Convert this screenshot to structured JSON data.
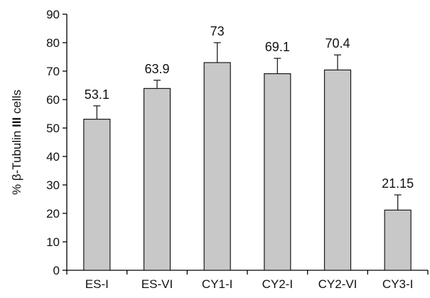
{
  "chart_data": {
    "type": "bar",
    "categories": [
      "ES-I",
      "ES-VI",
      "CY1-I",
      "CY2-I",
      "CY2-VI",
      "CY3-I"
    ],
    "values": [
      53.1,
      63.9,
      73,
      69.1,
      70.4,
      21.15
    ],
    "value_labels": [
      "53.1",
      "63.9",
      "73",
      "69.1",
      "70.4",
      "21.15"
    ],
    "error_upper": [
      57.8,
      66.8,
      80.0,
      74.5,
      75.7,
      26.5
    ],
    "ylabel": {
      "prefix": "% β-Tubulin ",
      "bold": "III",
      "suffix": " cells"
    },
    "ylim": [
      0,
      90
    ],
    "yticks": [
      0,
      10,
      20,
      30,
      40,
      50,
      60,
      70,
      80,
      90
    ],
    "bar_color": "#c8c8c8",
    "bar_edge_color": "#1a1a1a",
    "grid": false,
    "legend": "none"
  }
}
